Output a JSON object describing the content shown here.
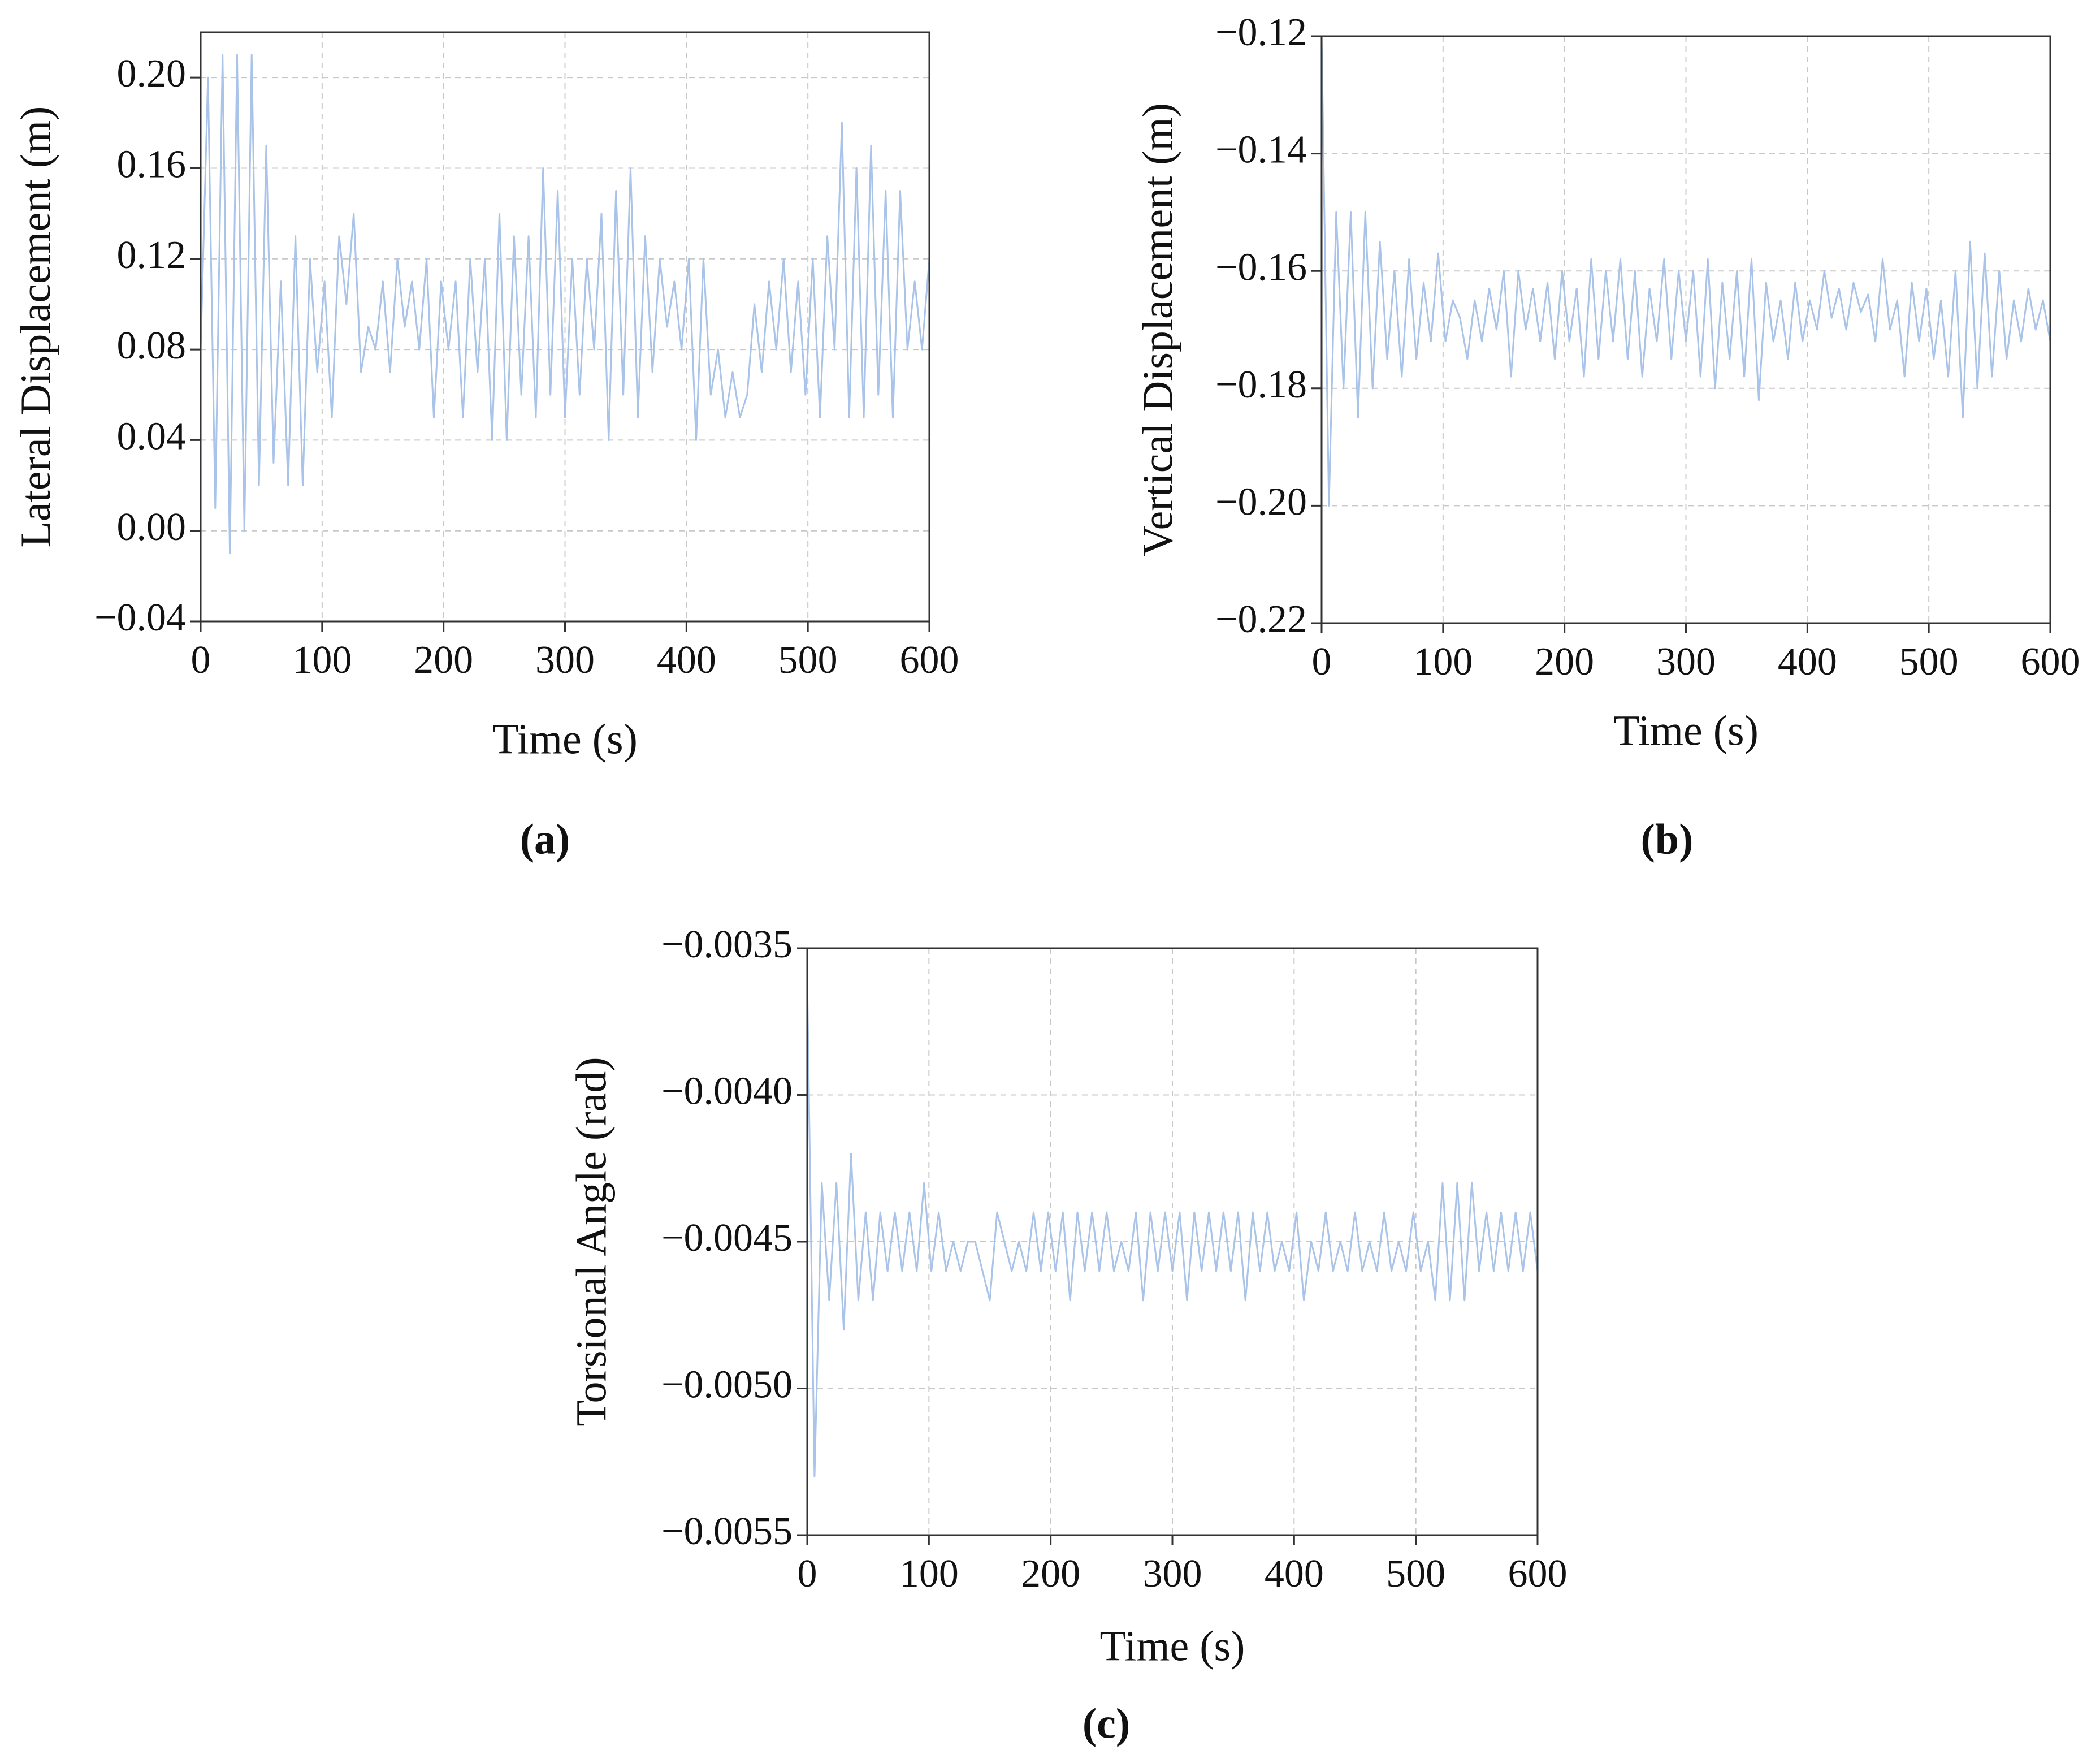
{
  "chart_data": [
    {
      "type": "line",
      "caption": "(a)",
      "x_label": "Time (s)",
      "y_label": "Lateral Displacement (m)",
      "xlim": [
        0,
        600
      ],
      "xticks": [
        0,
        100,
        200,
        300,
        400,
        500,
        600
      ],
      "ylim": [
        -0.04,
        0.22
      ],
      "yticks": [
        {
          "value": -0.04,
          "label": "−0.04"
        },
        {
          "value": 0,
          "label": "0.00"
        },
        0.04,
        0.08,
        0.12,
        0.16,
        {
          "value": 0.2,
          "label": "0.20"
        }
      ],
      "grid": true,
      "x": [
        0,
        6,
        12,
        18,
        24,
        30,
        36,
        42,
        48,
        54,
        60,
        66,
        72,
        78,
        84,
        90,
        96,
        102,
        108,
        114,
        120,
        126,
        132,
        138,
        144,
        150,
        156,
        162,
        168,
        174,
        180,
        186,
        192,
        198,
        204,
        210,
        216,
        222,
        228,
        234,
        240,
        246,
        252,
        258,
        264,
        270,
        276,
        282,
        288,
        294,
        300,
        306,
        312,
        318,
        324,
        330,
        336,
        342,
        348,
        354,
        360,
        366,
        372,
        378,
        384,
        390,
        396,
        402,
        408,
        414,
        420,
        426,
        432,
        438,
        444,
        450,
        456,
        462,
        468,
        474,
        480,
        486,
        492,
        498,
        504,
        510,
        516,
        522,
        528,
        534,
        540,
        546,
        552,
        558,
        564,
        570,
        576,
        582,
        588,
        594,
        600
      ],
      "series": [
        {
          "color": "#a9c4e8",
          "values": [
            0.08,
            0.2,
            0.01,
            0.21,
            -0.01,
            0.21,
            0.0,
            0.21,
            0.02,
            0.17,
            0.03,
            0.11,
            0.02,
            0.13,
            0.02,
            0.12,
            0.07,
            0.11,
            0.05,
            0.13,
            0.1,
            0.14,
            0.07,
            0.09,
            0.08,
            0.11,
            0.07,
            0.12,
            0.09,
            0.11,
            0.08,
            0.12,
            0.05,
            0.11,
            0.08,
            0.11,
            0.05,
            0.12,
            0.07,
            0.12,
            0.04,
            0.14,
            0.04,
            0.13,
            0.06,
            0.13,
            0.05,
            0.16,
            0.06,
            0.15,
            0.05,
            0.12,
            0.06,
            0.12,
            0.08,
            0.14,
            0.04,
            0.15,
            0.06,
            0.16,
            0.05,
            0.13,
            0.07,
            0.12,
            0.09,
            0.11,
            0.08,
            0.12,
            0.04,
            0.12,
            0.06,
            0.08,
            0.05,
            0.07,
            0.05,
            0.06,
            0.1,
            0.07,
            0.11,
            0.08,
            0.12,
            0.07,
            0.11,
            0.06,
            0.12,
            0.05,
            0.13,
            0.08,
            0.18,
            0.05,
            0.16,
            0.05,
            0.17,
            0.06,
            0.15,
            0.05,
            0.15,
            0.08,
            0.11,
            0.08,
            0.12
          ]
        }
      ]
    },
    {
      "type": "line",
      "caption": "(b)",
      "x_label": "Time (s)",
      "y_label": "Vertical Displacement (m)",
      "xlim": [
        0,
        600
      ],
      "xticks": [
        0,
        100,
        200,
        300,
        400,
        500,
        600
      ],
      "ylim": [
        -0.22,
        -0.12
      ],
      "yticks": [
        {
          "value": -0.22,
          "label": "−0.22"
        },
        {
          "value": -0.2,
          "label": "−0.20"
        },
        {
          "value": -0.18,
          "label": "−0.18"
        },
        {
          "value": -0.16,
          "label": "−0.16"
        },
        {
          "value": -0.14,
          "label": "−0.14"
        },
        {
          "value": -0.12,
          "label": "−0.12"
        }
      ],
      "grid": true,
      "x": [
        0,
        6,
        12,
        18,
        24,
        30,
        36,
        42,
        48,
        54,
        60,
        66,
        72,
        78,
        84,
        90,
        96,
        102,
        108,
        114,
        120,
        126,
        132,
        138,
        144,
        150,
        156,
        162,
        168,
        174,
        180,
        186,
        192,
        198,
        204,
        210,
        216,
        222,
        228,
        234,
        240,
        246,
        252,
        258,
        264,
        270,
        276,
        282,
        288,
        294,
        300,
        306,
        312,
        318,
        324,
        330,
        336,
        342,
        348,
        354,
        360,
        366,
        372,
        378,
        384,
        390,
        396,
        402,
        408,
        414,
        420,
        426,
        432,
        438,
        444,
        450,
        456,
        462,
        468,
        474,
        480,
        486,
        492,
        498,
        504,
        510,
        516,
        522,
        528,
        534,
        540,
        546,
        552,
        558,
        564,
        570,
        576,
        582,
        588,
        594,
        600
      ],
      "series": [
        {
          "color": "#a9c4e8",
          "values": [
            -0.12,
            -0.2,
            -0.15,
            -0.18,
            -0.15,
            -0.185,
            -0.15,
            -0.18,
            -0.155,
            -0.175,
            -0.16,
            -0.178,
            -0.158,
            -0.175,
            -0.162,
            -0.172,
            -0.157,
            -0.172,
            -0.165,
            -0.168,
            -0.175,
            -0.165,
            -0.172,
            -0.163,
            -0.17,
            -0.16,
            -0.178,
            -0.16,
            -0.17,
            -0.163,
            -0.172,
            -0.162,
            -0.175,
            -0.16,
            -0.172,
            -0.163,
            -0.178,
            -0.158,
            -0.175,
            -0.16,
            -0.172,
            -0.158,
            -0.175,
            -0.16,
            -0.178,
            -0.163,
            -0.172,
            -0.158,
            -0.175,
            -0.16,
            -0.172,
            -0.16,
            -0.178,
            -0.158,
            -0.18,
            -0.162,
            -0.175,
            -0.16,
            -0.178,
            -0.158,
            -0.182,
            -0.162,
            -0.172,
            -0.165,
            -0.175,
            -0.162,
            -0.172,
            -0.165,
            -0.17,
            -0.16,
            -0.168,
            -0.163,
            -0.17,
            -0.162,
            -0.167,
            -0.164,
            -0.172,
            -0.158,
            -0.17,
            -0.165,
            -0.178,
            -0.162,
            -0.172,
            -0.163,
            -0.175,
            -0.165,
            -0.178,
            -0.16,
            -0.185,
            -0.155,
            -0.18,
            -0.157,
            -0.178,
            -0.16,
            -0.175,
            -0.165,
            -0.172,
            -0.163,
            -0.17,
            -0.165,
            -0.172
          ]
        }
      ]
    },
    {
      "type": "line",
      "caption": "(c)",
      "x_label": "Time (s)",
      "y_label": "Torsional Angle (rad)",
      "xlim": [
        0,
        600
      ],
      "xticks": [
        0,
        100,
        200,
        300,
        400,
        500,
        600
      ],
      "ylim": [
        -0.0055,
        -0.0035
      ],
      "yticks": [
        {
          "value": -0.0055,
          "label": "−0.0055"
        },
        {
          "value": -0.005,
          "label": "−0.0050"
        },
        {
          "value": -0.0045,
          "label": "−0.0045"
        },
        {
          "value": -0.004,
          "label": "−0.0040"
        },
        {
          "value": -0.0035,
          "label": "−0.0035"
        }
      ],
      "grid": true,
      "x": [
        0,
        6,
        12,
        18,
        24,
        30,
        36,
        42,
        48,
        54,
        60,
        66,
        72,
        78,
        84,
        90,
        96,
        102,
        108,
        114,
        120,
        126,
        132,
        138,
        144,
        150,
        156,
        162,
        168,
        174,
        180,
        186,
        192,
        198,
        204,
        210,
        216,
        222,
        228,
        234,
        240,
        246,
        252,
        258,
        264,
        270,
        276,
        282,
        288,
        294,
        300,
        306,
        312,
        318,
        324,
        330,
        336,
        342,
        348,
        354,
        360,
        366,
        372,
        378,
        384,
        390,
        396,
        402,
        408,
        414,
        420,
        426,
        432,
        438,
        444,
        450,
        456,
        462,
        468,
        474,
        480,
        486,
        492,
        498,
        504,
        510,
        516,
        522,
        528,
        534,
        540,
        546,
        552,
        558,
        564,
        570,
        576,
        582,
        588,
        594,
        600
      ],
      "series": [
        {
          "color": "#a9c4e8",
          "values": [
            -0.0036,
            -0.0053,
            -0.0043,
            -0.0047,
            -0.0043,
            -0.0048,
            -0.0042,
            -0.0047,
            -0.0044,
            -0.0047,
            -0.0044,
            -0.0046,
            -0.0044,
            -0.0046,
            -0.0044,
            -0.0046,
            -0.0043,
            -0.0046,
            -0.0044,
            -0.0046,
            -0.0045,
            -0.0046,
            -0.0045,
            -0.0045,
            -0.0046,
            -0.0047,
            -0.0044,
            -0.0045,
            -0.0046,
            -0.0045,
            -0.0046,
            -0.0044,
            -0.0046,
            -0.0044,
            -0.0046,
            -0.0044,
            -0.0047,
            -0.0044,
            -0.0046,
            -0.0044,
            -0.0046,
            -0.0044,
            -0.0046,
            -0.0045,
            -0.0046,
            -0.0044,
            -0.0047,
            -0.0044,
            -0.0046,
            -0.0044,
            -0.0046,
            -0.0044,
            -0.0047,
            -0.0044,
            -0.0046,
            -0.0044,
            -0.0046,
            -0.0044,
            -0.0046,
            -0.0044,
            -0.0047,
            -0.0044,
            -0.0046,
            -0.0044,
            -0.0046,
            -0.0045,
            -0.0046,
            -0.0044,
            -0.0047,
            -0.0045,
            -0.0046,
            -0.0044,
            -0.0046,
            -0.0045,
            -0.0046,
            -0.0044,
            -0.0046,
            -0.0045,
            -0.0046,
            -0.0044,
            -0.0046,
            -0.0045,
            -0.0046,
            -0.0044,
            -0.0046,
            -0.0045,
            -0.0047,
            -0.0043,
            -0.0047,
            -0.0043,
            -0.0047,
            -0.0043,
            -0.0046,
            -0.0044,
            -0.0046,
            -0.0044,
            -0.0046,
            -0.0044,
            -0.0046,
            -0.0044,
            -0.0046
          ]
        }
      ]
    }
  ]
}
